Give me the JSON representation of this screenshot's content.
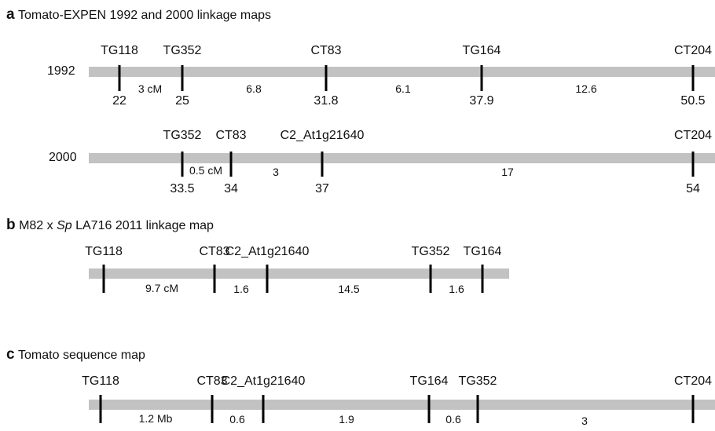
{
  "panels": [
    {
      "id": "a",
      "letter": "a",
      "title": "Tomato-EXPEN 1992 and 2000 linkage maps",
      "maps": [
        {
          "id": "a1992",
          "year_label": "1992",
          "markers": [
            {
              "name": "TG118",
              "position": "22"
            },
            {
              "name": "TG352",
              "position": "25"
            },
            {
              "name": "CT83",
              "position": "31.8"
            },
            {
              "name": "TG164",
              "position": "37.9"
            },
            {
              "name": "CT204",
              "position": "50.5"
            }
          ],
          "intervals": [
            "3 cM",
            "6.8",
            "6.1",
            "12.6"
          ]
        },
        {
          "id": "a2000",
          "year_label": "2000",
          "markers": [
            {
              "name": "TG352",
              "position": "33.5"
            },
            {
              "name": "CT83",
              "position": "34"
            },
            {
              "name": "C2_At1g21640",
              "position": "37"
            },
            {
              "name": "CT204",
              "position": "54"
            }
          ],
          "intervals": [
            "0.5 cM",
            "3",
            "17"
          ]
        }
      ]
    },
    {
      "id": "b",
      "letter": "b",
      "title_parts": [
        "M82 x ",
        "Sp",
        " LA716 2011 linkage map"
      ],
      "maps": [
        {
          "id": "b2011",
          "markers": [
            {
              "name": "TG118"
            },
            {
              "name": "CT83"
            },
            {
              "name": "C2_At1g21640"
            },
            {
              "name": "TG352"
            },
            {
              "name": "TG164"
            }
          ],
          "intervals": [
            "9.7 cM",
            "1.6",
            "14.5",
            "1.6"
          ]
        }
      ]
    },
    {
      "id": "c",
      "letter": "c",
      "title": "Tomato sequence map",
      "maps": [
        {
          "id": "cseq",
          "markers": [
            {
              "name": "TG118"
            },
            {
              "name": "CT83"
            },
            {
              "name": "C2_At1g21640"
            },
            {
              "name": "TG164"
            },
            {
              "name": "TG352"
            },
            {
              "name": "CT204"
            }
          ],
          "intervals": [
            "1.2 Mb",
            "0.6",
            "1.9",
            "0.6",
            "3"
          ]
        }
      ]
    }
  ]
}
